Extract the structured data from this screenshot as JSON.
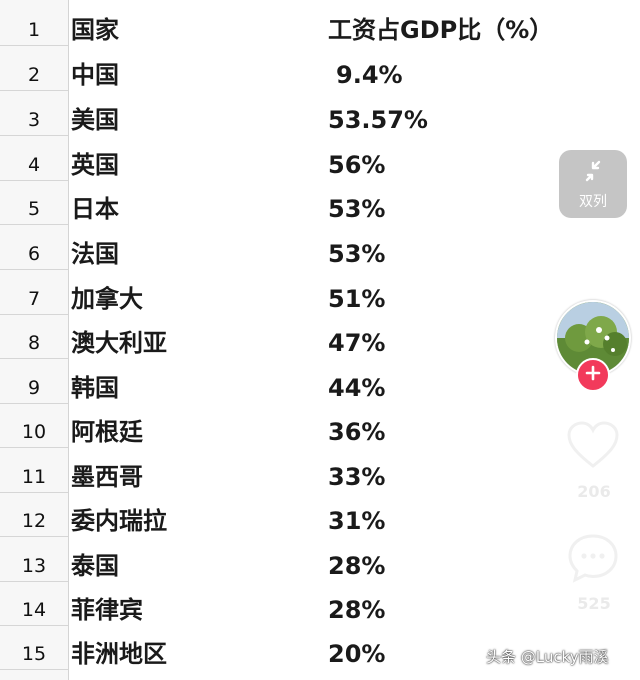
{
  "sheet": {
    "header": {
      "row": "1",
      "country": "国家",
      "value": "工资占GDP比（%）"
    },
    "rows": [
      {
        "row": "2",
        "country": "中国",
        "value": "9.4%"
      },
      {
        "row": "3",
        "country": "美国",
        "value": "53.57%"
      },
      {
        "row": "4",
        "country": "英国",
        "value": "56%"
      },
      {
        "row": "5",
        "country": "日本",
        "value": "53%"
      },
      {
        "row": "6",
        "country": "法国",
        "value": "53%"
      },
      {
        "row": "7",
        "country": "加拿大",
        "value": "51%"
      },
      {
        "row": "8",
        "country": "澳大利亚",
        "value": "47%"
      },
      {
        "row": "9",
        "country": "韩国",
        "value": "44%"
      },
      {
        "row": "10",
        "country": "阿根廷",
        "value": "36%"
      },
      {
        "row": "11",
        "country": "墨西哥",
        "value": "33%"
      },
      {
        "row": "12",
        "country": "委内瑞拉",
        "value": "31%"
      },
      {
        "row": "13",
        "country": "泰国",
        "value": "28%"
      },
      {
        "row": "14",
        "country": "菲律宾",
        "value": "28%"
      },
      {
        "row": "15",
        "country": "非洲地区",
        "value": "20%"
      }
    ]
  },
  "overlay": {
    "dual_column_label": "双列",
    "like_count": "206",
    "comment_count": "525",
    "watermark": "头条 @Lucky雨溪",
    "icons": {
      "dual": "shrink-arrows-icon",
      "follow": "plus-icon",
      "like": "heart-icon",
      "comment": "comment-icon"
    },
    "colors": {
      "follow_accent": "#f23a5b",
      "dual_button_bg": "#c2c2c2"
    }
  }
}
